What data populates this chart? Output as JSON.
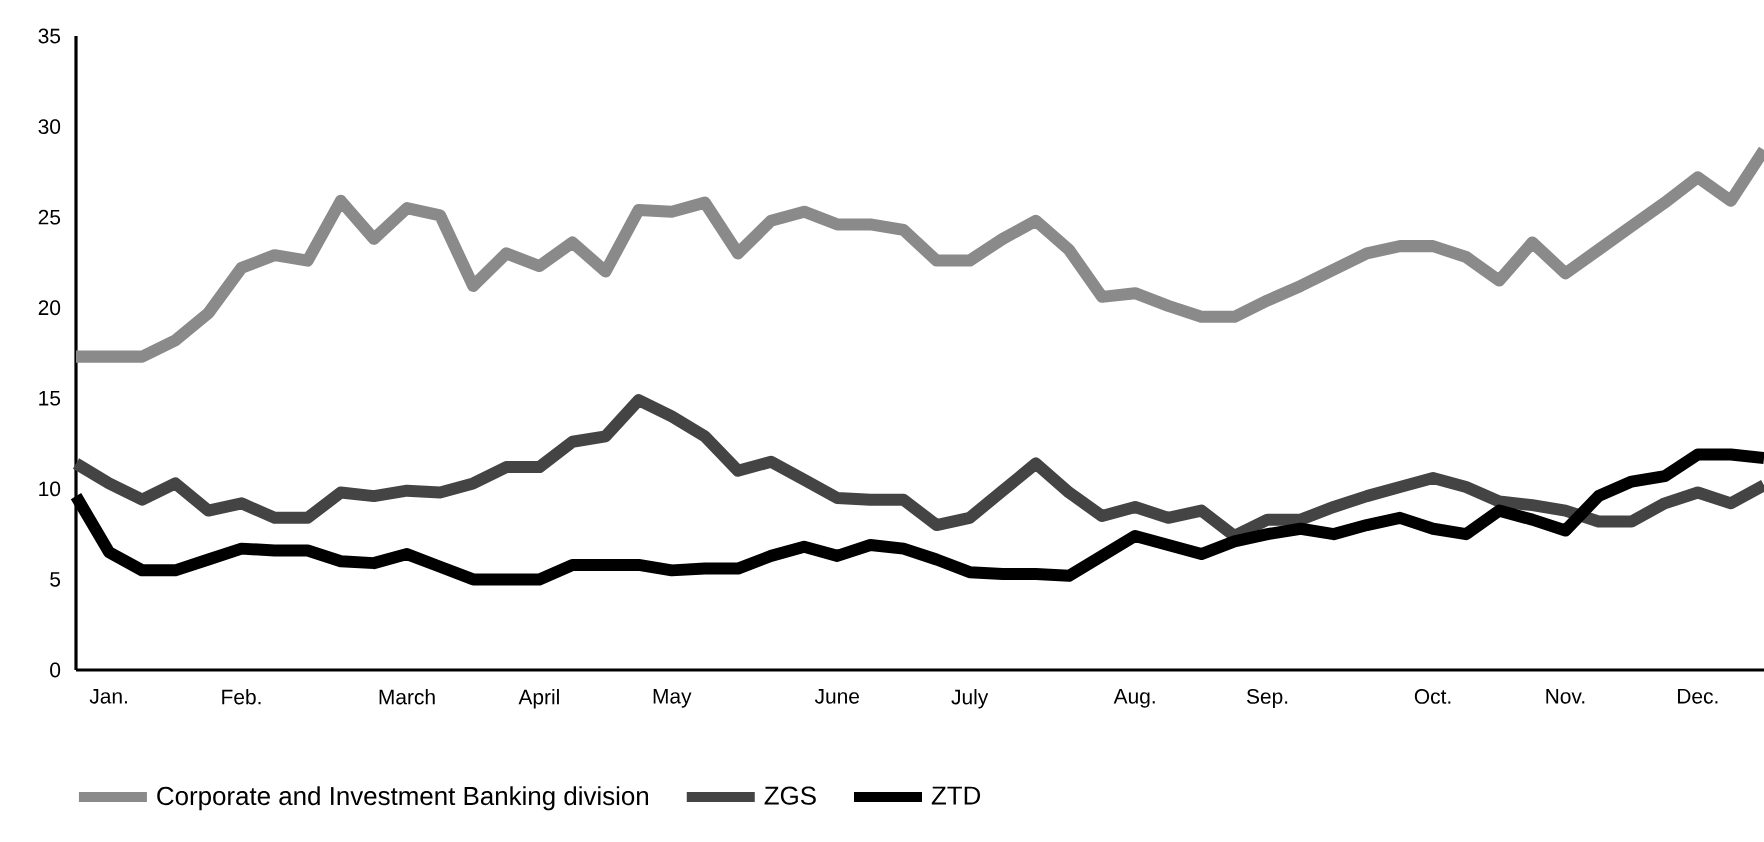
{
  "chart_data": {
    "type": "line",
    "categories": [
      null,
      "Jan.",
      null,
      null,
      null,
      "Feb.",
      null,
      null,
      null,
      null,
      "March",
      null,
      null,
      null,
      "April",
      null,
      null,
      null,
      "May",
      null,
      null,
      null,
      null,
      "June",
      null,
      null,
      null,
      "July",
      null,
      null,
      null,
      null,
      "Aug.",
      null,
      null,
      null,
      "Sep.",
      null,
      null,
      null,
      null,
      "Oct.",
      null,
      null,
      null,
      "Nov.",
      null,
      null,
      null,
      "Dec.",
      null,
      null
    ],
    "ylim": [
      0,
      35
    ],
    "yticks": [
      0,
      5,
      10,
      15,
      20,
      25,
      30,
      35
    ],
    "legend": "bottom",
    "marker": "none",
    "line_style": "solid",
    "series": [
      {
        "name": "Corporate and Investment Banking division",
        "color": "#8a8a8a",
        "values": [
          17.3,
          17.3,
          17.3,
          18.2,
          19.7,
          22.2,
          22.9,
          22.6,
          25.9,
          23.8,
          25.5,
          25.1,
          21.2,
          23.0,
          22.3,
          23.6,
          22.0,
          25.4,
          25.3,
          25.8,
          23.0,
          24.8,
          25.3,
          24.6,
          24.6,
          24.3,
          22.6,
          22.6,
          23.8,
          24.8,
          23.2,
          20.6,
          20.8,
          20.1,
          19.5,
          19.5,
          20.4,
          21.2,
          22.1,
          23.0,
          23.4,
          23.4,
          22.8,
          21.5,
          23.6,
          21.9,
          23.2,
          24.5,
          25.8,
          27.2,
          25.9,
          28.7
        ]
      },
      {
        "name": "ZGS",
        "color": "#444444",
        "values": [
          11.4,
          10.3,
          9.4,
          10.3,
          8.8,
          9.2,
          8.4,
          8.4,
          9.8,
          9.6,
          9.9,
          9.8,
          10.3,
          11.2,
          11.2,
          12.6,
          12.9,
          14.9,
          14.0,
          12.9,
          11.0,
          11.5,
          10.5,
          9.5,
          9.4,
          9.4,
          8.0,
          8.4,
          9.9,
          11.4,
          9.8,
          8.5,
          9.0,
          8.4,
          8.8,
          7.4,
          8.3,
          8.3,
          9.0,
          9.6,
          10.1,
          10.6,
          10.1,
          9.3,
          9.1,
          8.8,
          8.2,
          8.2,
          9.2,
          9.8,
          9.2,
          10.2
        ]
      },
      {
        "name": "ZTD",
        "color": "#000000",
        "values": [
          9.6,
          6.5,
          5.5,
          5.5,
          6.1,
          6.7,
          6.6,
          6.6,
          6.0,
          5.9,
          6.4,
          5.7,
          5.0,
          5.0,
          5.0,
          5.8,
          5.8,
          5.8,
          5.5,
          5.6,
          5.6,
          6.3,
          6.8,
          6.3,
          6.9,
          6.7,
          6.1,
          5.4,
          5.3,
          5.3,
          5.2,
          6.3,
          7.4,
          6.9,
          6.4,
          7.1,
          7.5,
          7.8,
          7.5,
          8.0,
          8.4,
          7.8,
          7.5,
          8.8,
          8.3,
          7.7,
          9.6,
          10.4,
          10.7,
          11.9,
          11.9,
          11.7
        ]
      }
    ]
  }
}
